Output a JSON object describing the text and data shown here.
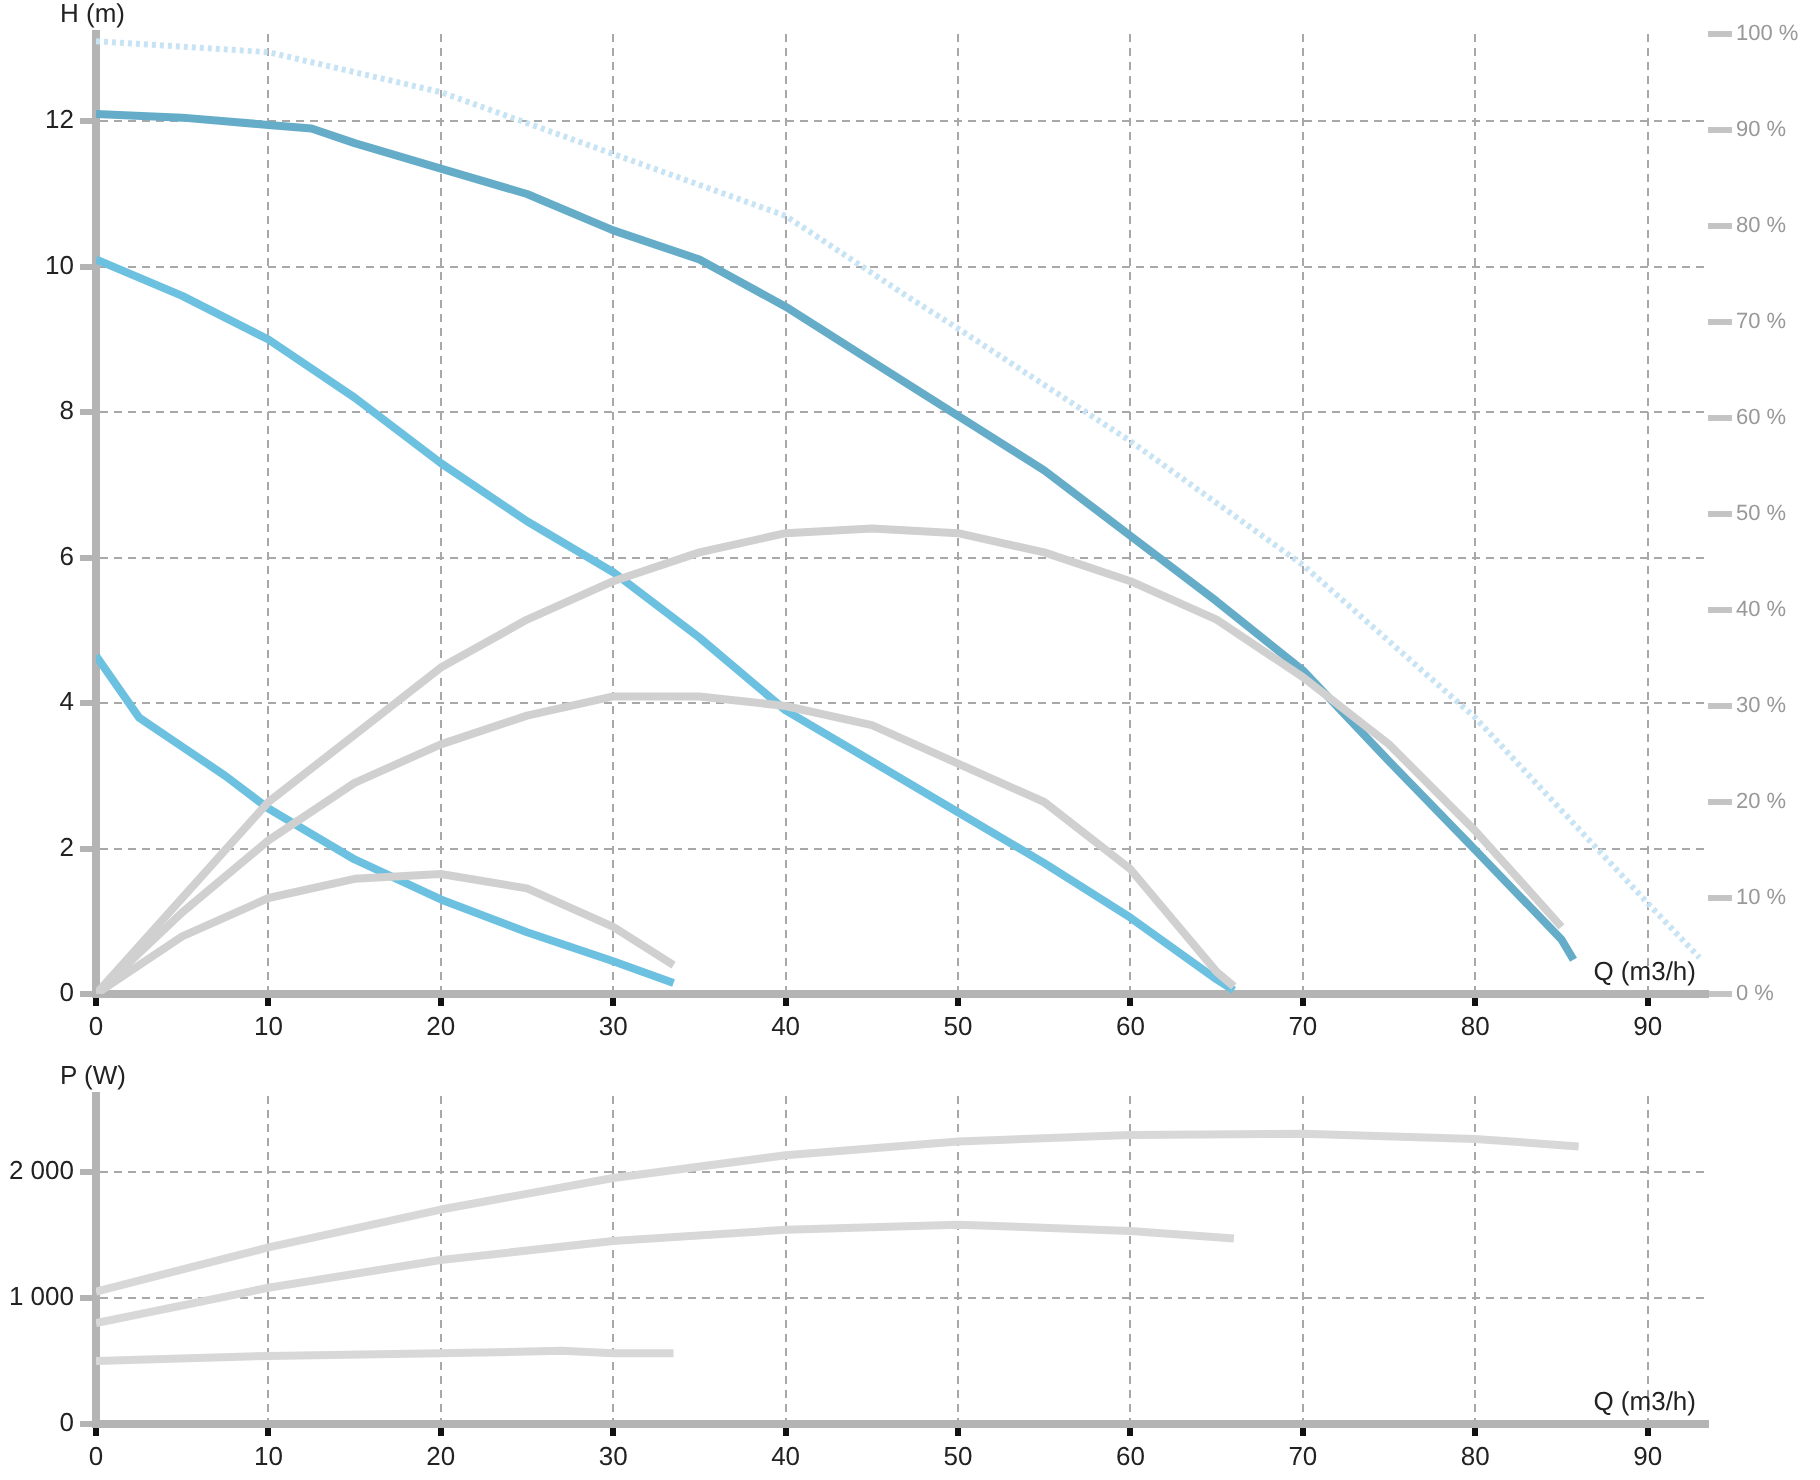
{
  "chart_data": [
    {
      "type": "line",
      "xlabel": "Q (m3/h)",
      "ylabel": "H (m)",
      "xlim": [
        0,
        93.5
      ],
      "xticks": [
        0,
        10,
        20,
        30,
        40,
        50,
        60,
        70,
        80,
        90
      ],
      "ylim": [
        0,
        13.2
      ],
      "yticks": [
        0,
        2,
        4,
        6,
        8,
        10,
        12
      ],
      "y2lim": [
        0,
        100
      ],
      "y2ticks": [
        {
          "value": 0,
          "label": "0 %"
        },
        {
          "value": 10,
          "label": "10 %"
        },
        {
          "value": 20,
          "label": "20 %"
        },
        {
          "value": 30,
          "label": "30 %"
        },
        {
          "value": 40,
          "label": "40 %"
        },
        {
          "value": 50,
          "label": "50 %"
        },
        {
          "value": 60,
          "label": "60 %"
        },
        {
          "value": 70,
          "label": "70 %"
        },
        {
          "value": 80,
          "label": "80 %"
        },
        {
          "value": 90,
          "label": "90 %"
        },
        {
          "value": 100,
          "label": "100 %"
        }
      ],
      "grid": true,
      "legend": false,
      "marker": "none",
      "series": [
        {
          "color": "#c8e4f4",
          "line_style": "dotted",
          "x": [
            0,
            10,
            20,
            30,
            40,
            47,
            50,
            60,
            70,
            80,
            90,
            93
          ],
          "values": [
            13.1,
            12.95,
            12.4,
            11.55,
            10.7,
            9.6,
            9.15,
            7.6,
            5.9,
            3.8,
            1.25,
            0.5
          ]
        },
        {
          "color": "#d0d0d0",
          "axis": "y2",
          "x": [
            0,
            5,
            10,
            15,
            20,
            25,
            30,
            35,
            40,
            45,
            50,
            55,
            60,
            65,
            70,
            75,
            80,
            85
          ],
          "values": [
            0,
            10,
            20,
            27,
            34,
            39,
            43,
            46,
            48,
            48.5,
            48,
            46,
            43,
            39,
            33,
            26,
            17,
            7
          ]
        },
        {
          "color": "#d0d0d0",
          "axis": "y2",
          "x": [
            0,
            5,
            10,
            15,
            20,
            25,
            30,
            35,
            40,
            45,
            50,
            55,
            60,
            65,
            66
          ],
          "values": [
            0,
            8.5,
            16,
            22,
            26,
            29,
            31,
            31,
            30,
            28,
            24,
            20,
            13,
            2.3,
            0.8
          ]
        },
        {
          "color": "#d0d0d0",
          "axis": "y2",
          "x": [
            0,
            5,
            10,
            15,
            20,
            25,
            30,
            33.5
          ],
          "values": [
            0,
            6,
            10,
            12,
            12.5,
            11,
            7,
            3
          ]
        },
        {
          "color": "#64acc8",
          "x": [
            0,
            5,
            10,
            12.5,
            15,
            20,
            25,
            30,
            35,
            40,
            45,
            50,
            55,
            60,
            65,
            70,
            75,
            80,
            85,
            85.7
          ],
          "values": [
            12.1,
            12.05,
            11.95,
            11.9,
            11.7,
            11.35,
            11,
            10.5,
            10.1,
            9.45,
            8.7,
            7.95,
            7.2,
            6.3,
            5.4,
            4.45,
            3.2,
            1.98,
            0.75,
            0.47
          ]
        },
        {
          "color": "#6cc0e0",
          "x": [
            0,
            5,
            10,
            15,
            20,
            25,
            30,
            35,
            40,
            45,
            50,
            55,
            60,
            65,
            66
          ],
          "values": [
            10.1,
            9.6,
            9,
            8.2,
            7.3,
            6.5,
            5.8,
            4.9,
            3.9,
            3.2,
            2.5,
            1.8,
            1.05,
            0.2,
            0.05
          ]
        },
        {
          "color": "#6cc0e0",
          "x": [
            0,
            2.5,
            5,
            7.5,
            10,
            12.5,
            15,
            20,
            25,
            30,
            33.5
          ],
          "values": [
            4.65,
            3.8,
            3.4,
            3,
            2.55,
            2.2,
            1.85,
            1.3,
            0.85,
            0.45,
            0.15
          ]
        }
      ]
    },
    {
      "type": "line",
      "xlabel": "Q (m3/h)",
      "ylabel": "P (W)",
      "xlim": [
        0,
        93.5
      ],
      "xticks": [
        0,
        10,
        20,
        30,
        40,
        50,
        60,
        70,
        80,
        90
      ],
      "ylim": [
        0,
        2600
      ],
      "yticks": [
        0,
        {
          "value": 1000,
          "label": "1 000"
        },
        {
          "value": 2000,
          "label": "2 000"
        }
      ],
      "grid": true,
      "legend": false,
      "marker": "none",
      "series": [
        {
          "color": "#d8d8d8",
          "x": [
            0,
            10,
            20,
            30,
            40,
            50,
            60,
            70,
            80,
            86
          ],
          "values": [
            1050,
            1400,
            1700,
            1950,
            2130,
            2240,
            2290,
            2300,
            2260,
            2200
          ]
        },
        {
          "color": "#d8d8d8",
          "x": [
            0,
            10,
            20,
            30,
            40,
            50,
            60,
            66
          ],
          "values": [
            800,
            1080,
            1300,
            1450,
            1540,
            1580,
            1530,
            1470
          ]
        },
        {
          "color": "#d8d8d8",
          "x": [
            0,
            10,
            20,
            27,
            30,
            33.5
          ],
          "values": [
            500,
            540,
            560,
            580,
            560,
            560
          ]
        }
      ]
    }
  ]
}
